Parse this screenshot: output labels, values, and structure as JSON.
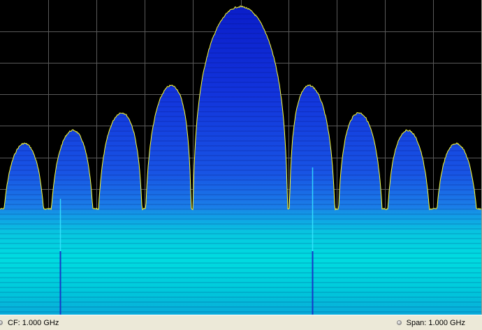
{
  "display": {
    "trace_color": "#ffff33",
    "grid_color": "#5a5a5a",
    "spectrogram_colors": {
      "high": "#1a40e0",
      "mid": "#1a6ee6",
      "low": "#00d8dc",
      "background": "#000000"
    },
    "grid": {
      "vertical_divisions": 10,
      "horizontal_divisions": 10
    }
  },
  "status": {
    "cf_label": "CF: 1.000 GHz",
    "span_label": "Span: 1.000 GHz"
  }
}
